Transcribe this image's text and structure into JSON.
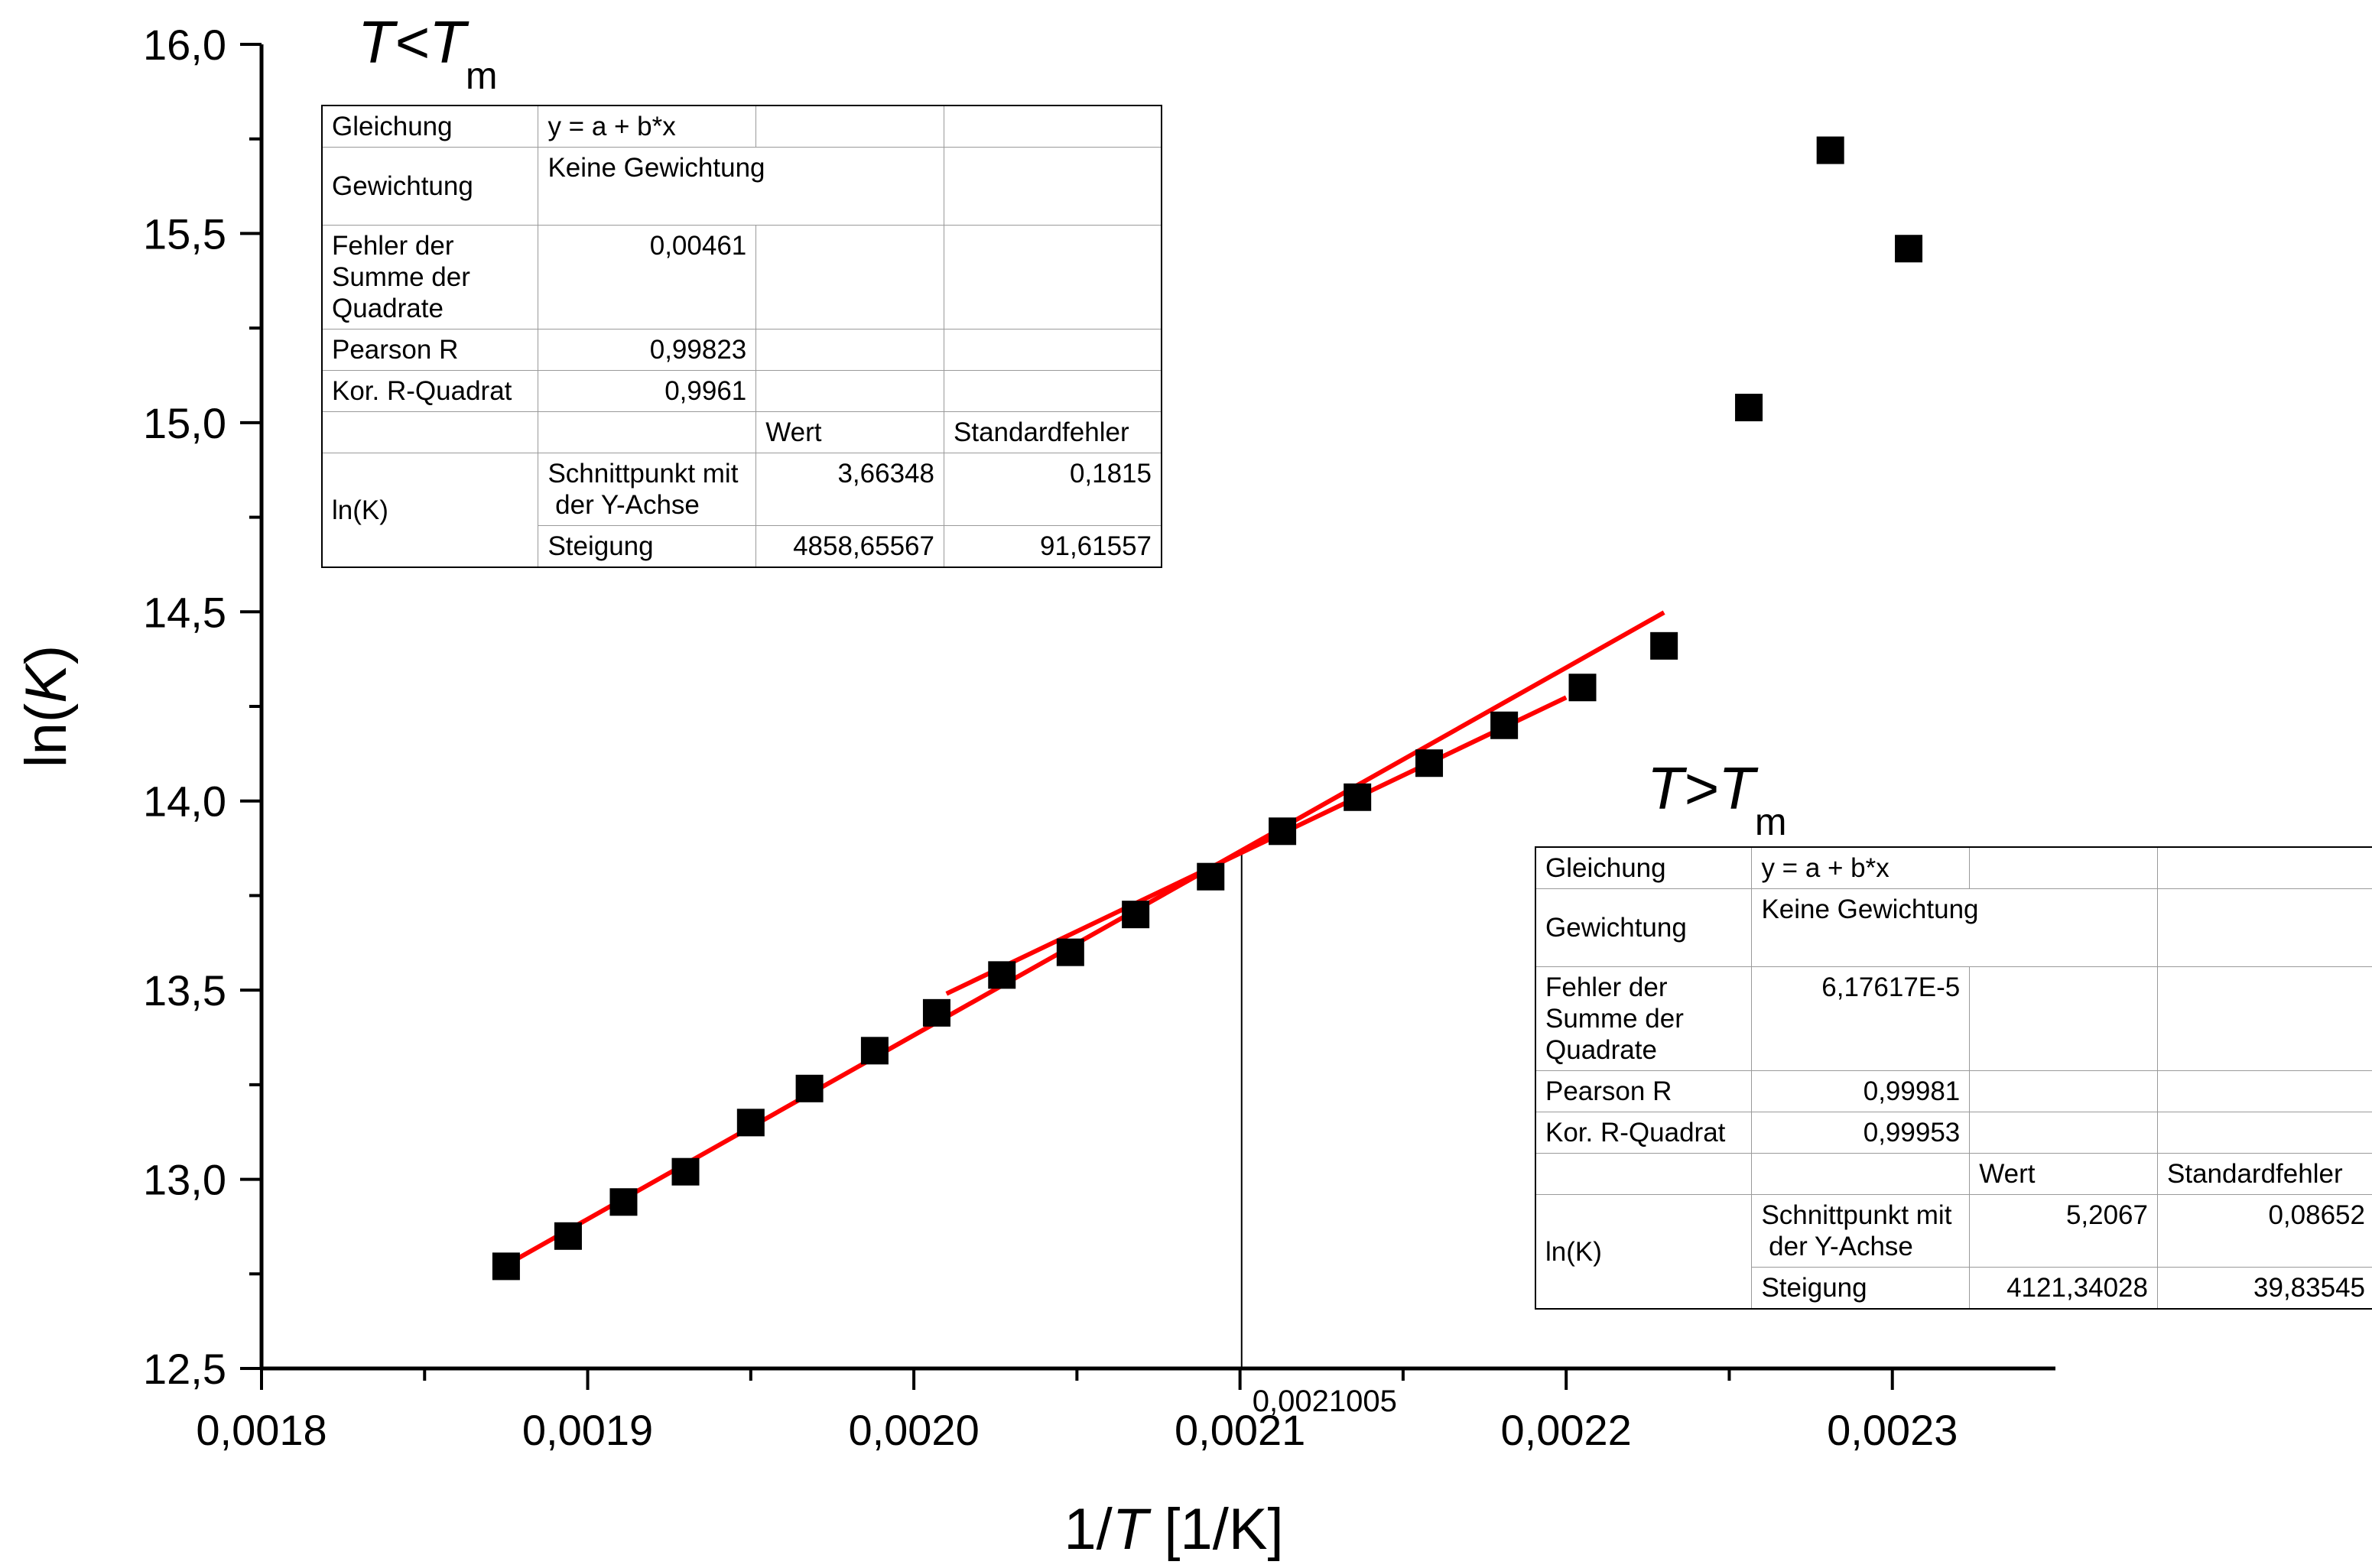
{
  "chart_data": {
    "type": "scatter",
    "xlabel": "1/T [1/K]",
    "ylabel": "ln(K)",
    "xlim": [
      0.0018,
      0.00235
    ],
    "ylim": [
      12.5,
      16.0
    ],
    "x_ticks": [
      "0,0018",
      "0,0019",
      "0,0020",
      "0,0021",
      "0,0022",
      "0,0023"
    ],
    "y_ticks": [
      "12,5",
      "13,0",
      "13,5",
      "14,0",
      "14,5",
      "15,0",
      "15,5",
      "16,0"
    ],
    "series": [
      {
        "points": [
          [
            0.001875,
            12.77
          ],
          [
            0.001894,
            12.85
          ],
          [
            0.001911,
            12.94
          ],
          [
            0.00193,
            13.02
          ],
          [
            0.00195,
            13.15
          ],
          [
            0.001968,
            13.24
          ],
          [
            0.001988,
            13.34
          ],
          [
            0.002007,
            13.44
          ],
          [
            0.002027,
            13.54
          ],
          [
            0.002048,
            13.6
          ],
          [
            0.002068,
            13.7
          ],
          [
            0.002091,
            13.8
          ],
          [
            0.002113,
            13.92
          ],
          [
            0.002136,
            14.01
          ],
          [
            0.002158,
            14.1
          ],
          [
            0.002181,
            14.2
          ],
          [
            0.002205,
            14.3
          ],
          [
            0.00223,
            14.41
          ],
          [
            0.002256,
            15.04
          ],
          [
            0.002281,
            15.72
          ],
          [
            0.002305,
            15.46
          ]
        ],
        "color": "#000000",
        "marker": "square"
      }
    ],
    "fit_lines": [
      {
        "x_start": 0.001875,
        "x_end": 0.00223,
        "intercept": 3.66348,
        "slope": 4858.65567,
        "color": "#ff0000"
      },
      {
        "x_start": 0.00201,
        "x_end": 0.0022,
        "intercept": 5.2067,
        "slope": 4121.34028,
        "color": "#ff0000"
      }
    ],
    "intersection": {
      "x": 0.0021005,
      "label": "0,0021005"
    },
    "grid": false,
    "region_labels": {
      "low": {
        "main": "T<T",
        "sub": "m"
      },
      "high": {
        "main": "T>T",
        "sub": "m"
      }
    }
  },
  "tables": {
    "low": {
      "gleichung_label": "Gleichung",
      "gleichung_value": "y = a + b*x",
      "gewichtung_label": "Gewichtung",
      "gewichtung_value": "Keine Gewichtung",
      "fehler_label_1": "Fehler der",
      "fehler_label_2": "Summe der",
      "fehler_label_3": "Quadrate",
      "fehler_value": "0,00461",
      "pearson_label": "Pearson R",
      "pearson_value": "0,99823",
      "rquad_label": "Kor. R-Quadrat",
      "rquad_value": "0,9961",
      "wert_header": "Wert",
      "fehler_header": "Standardfehler",
      "group_label": "ln(K)",
      "intercept_label_1": "Schnittpunkt mit",
      "intercept_label_2": " der Y-Achse",
      "intercept_value": "3,66348",
      "intercept_error": "0,1815",
      "slope_label": "Steigung",
      "slope_value": "4858,65567",
      "slope_error": "91,61557"
    },
    "high": {
      "gleichung_label": "Gleichung",
      "gleichung_value": "y = a + b*x",
      "gewichtung_label": "Gewichtung",
      "gewichtung_value": "Keine Gewichtung",
      "fehler_label_1": "Fehler der",
      "fehler_label_2": "Summe der",
      "fehler_label_3": "Quadrate",
      "fehler_value": "6,17617E-5",
      "pearson_label": "Pearson R",
      "pearson_value": "0,99981",
      "rquad_label": "Kor. R-Quadrat",
      "rquad_value": "0,99953",
      "wert_header": "Wert",
      "fehler_header": "Standardfehler",
      "group_label": "ln(K)",
      "intercept_label_1": "Schnittpunkt mit",
      "intercept_label_2": " der Y-Achse",
      "intercept_value": "5,2067",
      "intercept_error": "0,08652",
      "slope_label": "Steigung",
      "slope_value": "4121,34028",
      "slope_error": "39,83545"
    }
  }
}
